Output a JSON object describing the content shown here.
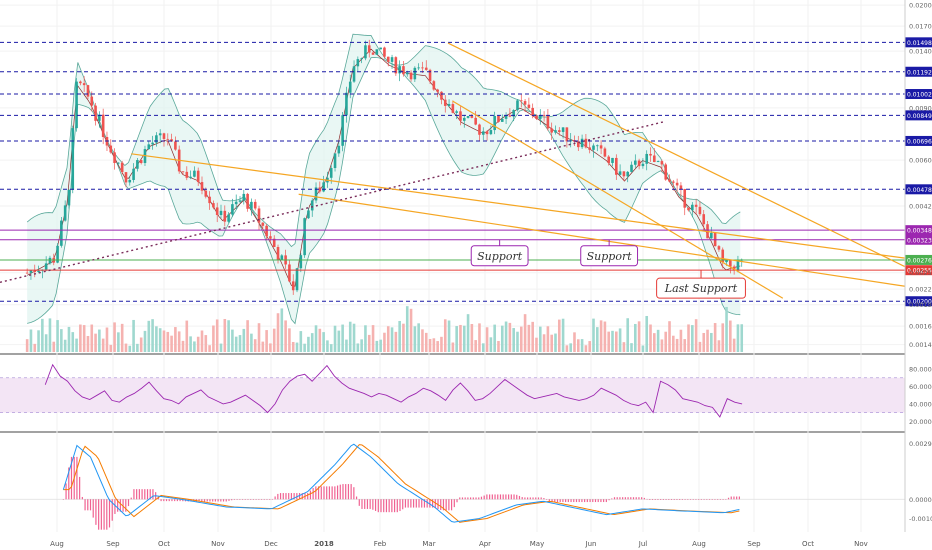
{
  "chart_data": {
    "type": "candlestick",
    "title": "",
    "panels": [
      "price",
      "rsi",
      "macd"
    ],
    "x_ticks": [
      "Aug",
      "Sep",
      "Oct",
      "Nov",
      "Dec",
      "2018",
      "Feb",
      "Mar",
      "Apr",
      "May",
      "Jun",
      "Jul",
      "Aug",
      "Sep",
      "Oct",
      "Nov"
    ],
    "price_axis": {
      "scale": "log",
      "range": [
        0.00135,
        0.0205
      ],
      "ticks": [
        "0.020000",
        "0.017000",
        "0.014000",
        "0.009000",
        "0.006000",
        "0.004200",
        "0.002500",
        "0.002200",
        "0.001950",
        "0.001650",
        "0.001430"
      ],
      "tick_values": [
        0.02,
        0.017,
        0.014,
        0.009,
        0.006,
        0.0042,
        0.0025,
        0.0022,
        0.00195,
        0.00165,
        0.00143
      ]
    },
    "price_levels": [
      {
        "label": "0.014984",
        "value": 0.014984,
        "color": "#1a1aa6",
        "style": "dashed"
      },
      {
        "label": "0.011921",
        "value": 0.011921,
        "color": "#1a1aa6",
        "style": "dashed"
      },
      {
        "label": "0.010026",
        "value": 0.010026,
        "color": "#1a1aa6",
        "style": "dashed"
      },
      {
        "label": "0.008494",
        "value": 0.008494,
        "color": "#1a1aa6",
        "style": "dashed"
      },
      {
        "label": "0.006962",
        "value": 0.006962,
        "color": "#1a1aa6",
        "style": "dashed"
      },
      {
        "label": "0.004781",
        "value": 0.004781,
        "color": "#1a1aa6",
        "style": "dashed"
      },
      {
        "label": "0.003480",
        "value": 0.00348,
        "color": "#9c27b0",
        "style": "solid"
      },
      {
        "label": "0.003230",
        "value": 0.00323,
        "color": "#9c27b0",
        "style": "solid"
      },
      {
        "label": "0.002761",
        "value": 0.002761,
        "color": "#4caf50",
        "style": "solid"
      },
      {
        "label": "0.002550",
        "value": 0.00255,
        "color": "#e53935",
        "style": "solid"
      },
      {
        "label": "0.002003",
        "value": 0.002003,
        "color": "#1a1aa6",
        "style": "dashed"
      }
    ],
    "annotations": [
      {
        "text": "Support",
        "color": "#9c27b0",
        "x_frac": 0.587,
        "value": 0.00323
      },
      {
        "text": "Support",
        "color": "#9c27b0",
        "x_frac": 0.708,
        "value": 0.00323
      },
      {
        "text": "Last Support",
        "color": "#e53935",
        "x_frac": 0.825,
        "value": 0.00255
      }
    ],
    "trendlines": [
      {
        "name": "descending-resistance-1",
        "color": "#f5a623",
        "from": {
          "x_frac": 0.495,
          "value": 0.0149
        },
        "to": {
          "x_frac": 1.0,
          "value": 0.00262
        }
      },
      {
        "name": "descending-channel-lower",
        "color": "#f5a623",
        "from": {
          "x_frac": 0.5,
          "value": 0.0095
        },
        "to": {
          "x_frac": 0.865,
          "value": 0.00205
        }
      },
      {
        "name": "long-descending",
        "color": "#f5a623",
        "from": {
          "x_frac": 0.145,
          "value": 0.0063
        },
        "to": {
          "x_frac": 1.0,
          "value": 0.0028
        }
      },
      {
        "name": "long-descending-2",
        "color": "#f5a623",
        "from": {
          "x_frac": 0.33,
          "value": 0.0046
        },
        "to": {
          "x_frac": 1.0,
          "value": 0.00225
        }
      },
      {
        "name": "rising-dotted",
        "color": "#7b2d5a",
        "from": {
          "x_frac": 0.0,
          "value": 0.00232
        },
        "to": {
          "x_frac": 0.735,
          "value": 0.0081
        }
      }
    ],
    "rsi": {
      "ticks": [
        "80.0000",
        "60.0000",
        "40.0000",
        "20.0000"
      ],
      "tick_values": [
        80,
        60,
        40,
        20
      ],
      "band": [
        30,
        70
      ],
      "range": [
        10,
        95
      ],
      "color": "#9c27b0",
      "values": [
        62,
        85,
        72,
        66,
        55,
        48,
        45,
        50,
        55,
        44,
        42,
        48,
        52,
        58,
        65,
        55,
        46,
        44,
        40,
        48,
        52,
        56,
        48,
        44,
        40,
        42,
        46,
        50,
        44,
        38,
        30,
        40,
        56,
        66,
        72,
        74,
        66,
        75,
        84,
        72,
        64,
        58,
        55,
        52,
        48,
        52,
        50,
        46,
        42,
        48,
        52,
        58,
        55,
        50,
        44,
        56,
        64,
        55,
        44,
        46,
        52,
        60,
        68,
        62,
        56,
        50,
        46,
        48,
        50,
        52,
        48,
        46,
        44,
        46,
        50,
        58,
        54,
        50,
        44,
        40,
        38,
        42,
        30,
        66,
        62,
        56,
        46,
        44,
        42,
        38,
        36,
        25,
        46,
        42,
        40
      ]
    },
    "macd": {
      "ticks": [
        "0.0029",
        "0.0000",
        "-0.0010"
      ],
      "tick_values": [
        0.0029,
        0.0,
        -0.001
      ],
      "range": [
        -0.0016,
        0.0034
      ],
      "macd_color": "#2196f3",
      "signal_color": "#f57c00",
      "hist_pos_color": "#e91e63",
      "hist_neg_color": "#e91e63"
    }
  }
}
